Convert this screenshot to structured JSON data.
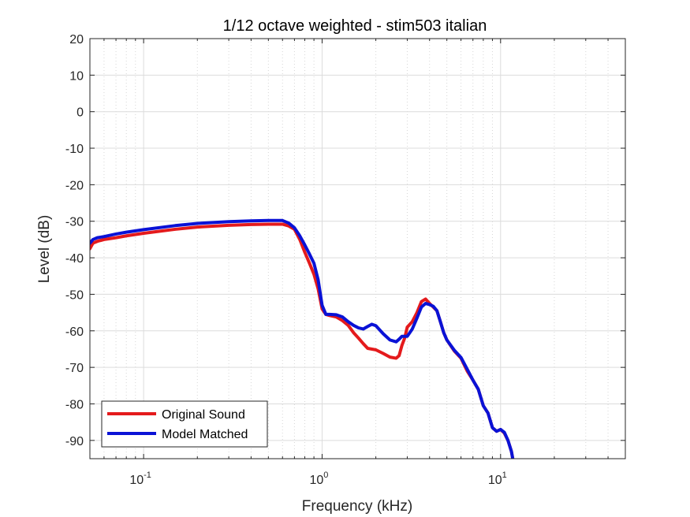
{
  "chart_data": {
    "type": "line",
    "title": "1/12 octave weighted - stim503 italian",
    "xlabel": "Frequency (kHz)",
    "ylabel": "Level (dB)",
    "xscale": "log",
    "xlim": [
      0.05,
      50
    ],
    "ylim": [
      -95,
      20
    ],
    "grid": true,
    "legend_position": "bottom-left",
    "x_ticks": [
      {
        "value": 0.1,
        "base": "10",
        "exp": "-1"
      },
      {
        "value": 1,
        "base": "10",
        "exp": "0"
      },
      {
        "value": 10,
        "base": "10",
        "exp": "1"
      }
    ],
    "y_ticks": [
      "20",
      "10",
      "0",
      "-10",
      "-20",
      "-30",
      "-40",
      "-50",
      "-60",
      "-70",
      "-80",
      "-90"
    ],
    "series": [
      {
        "name": "Original Sound",
        "color": "#e41a1c",
        "x": [
          0.05,
          0.052,
          0.055,
          0.06,
          0.07,
          0.08,
          0.1,
          0.15,
          0.2,
          0.3,
          0.4,
          0.5,
          0.6,
          0.65,
          0.7,
          0.75,
          0.8,
          0.85,
          0.9,
          0.95,
          1.0,
          1.05,
          1.1,
          1.2,
          1.3,
          1.4,
          1.5,
          1.6,
          1.7,
          1.8,
          2.0,
          2.2,
          2.4,
          2.6,
          2.7,
          2.8,
          2.9,
          3.0,
          3.2,
          3.4,
          3.6,
          3.8,
          4.0,
          4.2,
          4.4,
          4.6,
          4.8,
          5.0,
          5.5,
          6.0,
          6.5,
          7.0,
          7.5,
          8.0,
          8.5,
          9.0,
          9.5,
          10.0,
          10.5,
          11.0,
          11.5,
          11.8
        ],
        "y": [
          -37.5,
          -36,
          -35.5,
          -35,
          -34.5,
          -34,
          -33.3,
          -32.2,
          -31.6,
          -31.1,
          -30.9,
          -30.8,
          -30.8,
          -31.3,
          -32.2,
          -35,
          -38.5,
          -41.5,
          -44.5,
          -48.5,
          -54,
          -55.5,
          -55.8,
          -56.2,
          -57.2,
          -58.5,
          -60.5,
          -62,
          -63.5,
          -64.8,
          -65.2,
          -66.2,
          -67.2,
          -67.5,
          -66.8,
          -64,
          -62,
          -59,
          -57.5,
          -55,
          -52,
          -51.3,
          -52.5,
          -53.5,
          -54.5,
          -57.5,
          -60.5,
          -62.5,
          -65.5,
          -67.5,
          -71,
          -73.5,
          -76,
          -80.5,
          -82.5,
          -86.5,
          -87.5,
          -87,
          -88,
          -90,
          -93,
          -96
        ]
      },
      {
        "name": "Model Matched",
        "color": "#0a12d6",
        "x": [
          0.05,
          0.052,
          0.055,
          0.06,
          0.07,
          0.08,
          0.1,
          0.15,
          0.2,
          0.3,
          0.4,
          0.5,
          0.6,
          0.65,
          0.7,
          0.75,
          0.8,
          0.85,
          0.9,
          0.95,
          1.0,
          1.05,
          1.1,
          1.2,
          1.3,
          1.4,
          1.5,
          1.6,
          1.7,
          1.8,
          1.9,
          2.0,
          2.2,
          2.4,
          2.6,
          2.7,
          2.8,
          2.9,
          3.0,
          3.2,
          3.4,
          3.6,
          3.8,
          4.0,
          4.2,
          4.4,
          4.6,
          4.8,
          5.0,
          5.5,
          6.0,
          6.5,
          7.0,
          7.5,
          8.0,
          8.5,
          9.0,
          9.5,
          10.0,
          10.5,
          11.0,
          11.5,
          11.8
        ],
        "y": [
          -36,
          -35,
          -34.5,
          -34.2,
          -33.5,
          -33,
          -32.3,
          -31.2,
          -30.6,
          -30.1,
          -29.9,
          -29.8,
          -29.8,
          -30.5,
          -31.8,
          -34,
          -36.5,
          -39,
          -41.5,
          -46,
          -53,
          -55.5,
          -55.5,
          -55.6,
          -56.2,
          -57.5,
          -58.5,
          -59.2,
          -59.5,
          -58.8,
          -58.2,
          -58.6,
          -60.8,
          -62.5,
          -63,
          -62.3,
          -61.5,
          -61.5,
          -61.5,
          -59.5,
          -56.5,
          -53.5,
          -52.5,
          -52.8,
          -53.3,
          -54.5,
          -57.5,
          -60.5,
          -62.5,
          -65.3,
          -67.3,
          -70.5,
          -73.5,
          -76,
          -80.5,
          -82.5,
          -86.5,
          -87.5,
          -87,
          -87.8,
          -90,
          -93,
          -96
        ]
      }
    ]
  }
}
